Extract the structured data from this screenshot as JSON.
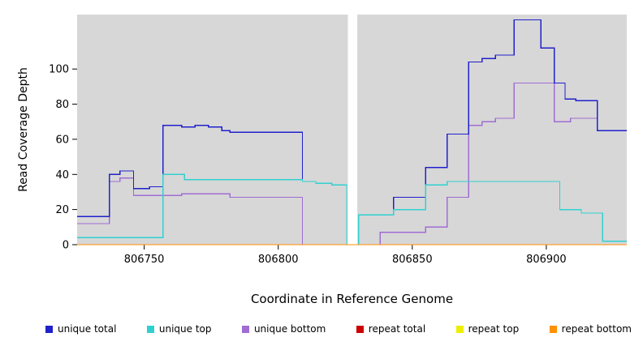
{
  "figure": {
    "background": "#ffffff",
    "panel_background": "#d7d7d7",
    "gap_color": "#ffffff",
    "tick_color": "#000000",
    "text_color": "#000000"
  },
  "chart_data": {
    "type": "line",
    "subtype": "step-coverage",
    "title": "",
    "xlabel": "Coordinate in Reference Genome",
    "ylabel": "Read Coverage Depth",
    "xlim": [
      806725,
      806930
    ],
    "ylim": [
      0,
      131
    ],
    "x_ticks": [
      806750,
      806800,
      806850,
      806900
    ],
    "y_ticks": [
      0,
      20,
      40,
      60,
      80,
      100
    ],
    "grid": false,
    "legend_position": "bottom",
    "gap": {
      "x_start": 806826,
      "x_end": 806829.5
    },
    "legend_order": [
      "unique total",
      "unique top",
      "unique bottom",
      "repeat total",
      "repeat top",
      "repeat bottom"
    ],
    "series": [
      {
        "name": "unique bottom",
        "color": "#a06cd5",
        "step_points": [
          [
            806725,
            12
          ],
          [
            806737,
            36
          ],
          [
            806741,
            38
          ],
          [
            806746,
            28
          ],
          [
            806757,
            28
          ],
          [
            806764,
            29
          ],
          [
            806782,
            27
          ],
          [
            806809,
            0
          ],
          [
            806838,
            7
          ],
          [
            806855,
            10
          ],
          [
            806863,
            27
          ],
          [
            806871,
            68
          ],
          [
            806876,
            70
          ],
          [
            806881,
            72
          ],
          [
            806888,
            92
          ],
          [
            806903,
            70
          ],
          [
            806909,
            72
          ],
          [
            806919,
            65
          ],
          [
            806930,
            65
          ]
        ]
      },
      {
        "name": "unique total",
        "color": "#2020cc",
        "step_points": [
          [
            806725,
            16
          ],
          [
            806737,
            40
          ],
          [
            806741,
            42
          ],
          [
            806746,
            32
          ],
          [
            806752,
            33
          ],
          [
            806757,
            68
          ],
          [
            806764,
            67
          ],
          [
            806769,
            68
          ],
          [
            806774,
            67
          ],
          [
            806779,
            65
          ],
          [
            806782,
            64
          ],
          [
            806809,
            36
          ],
          [
            806814,
            35
          ],
          [
            806820,
            34
          ],
          [
            806825.5,
            0
          ],
          [
            806830,
            17
          ],
          [
            806843,
            27
          ],
          [
            806855,
            44
          ],
          [
            806863,
            63
          ],
          [
            806871,
            104
          ],
          [
            806876,
            106
          ],
          [
            806881,
            108
          ],
          [
            806888,
            128
          ],
          [
            806898,
            112
          ],
          [
            806903,
            92
          ],
          [
            806907,
            83
          ],
          [
            806911,
            82
          ],
          [
            806919,
            65
          ],
          [
            806930,
            65
          ]
        ]
      },
      {
        "name": "unique top",
        "color": "#30d0d0",
        "step_points": [
          [
            806725,
            4
          ],
          [
            806757,
            40
          ],
          [
            806765,
            37
          ],
          [
            806809,
            36
          ],
          [
            806814,
            35
          ],
          [
            806820,
            34
          ],
          [
            806825.5,
            0
          ],
          [
            806830,
            17
          ],
          [
            806843,
            20
          ],
          [
            806855,
            34
          ],
          [
            806863,
            36
          ],
          [
            806905,
            20
          ],
          [
            806913,
            18
          ],
          [
            806921,
            2
          ],
          [
            806930,
            2
          ]
        ]
      },
      {
        "name": "repeat total",
        "color": "#cc0000",
        "step_points": [
          [
            806725,
            0
          ],
          [
            806930,
            0
          ]
        ]
      },
      {
        "name": "repeat top",
        "color": "#eeee00",
        "step_points": [
          [
            806725,
            0
          ],
          [
            806930,
            0
          ]
        ]
      },
      {
        "name": "repeat bottom",
        "color": "#ff9100",
        "step_points": [
          [
            806725,
            0
          ],
          [
            806930,
            0
          ]
        ]
      }
    ]
  }
}
